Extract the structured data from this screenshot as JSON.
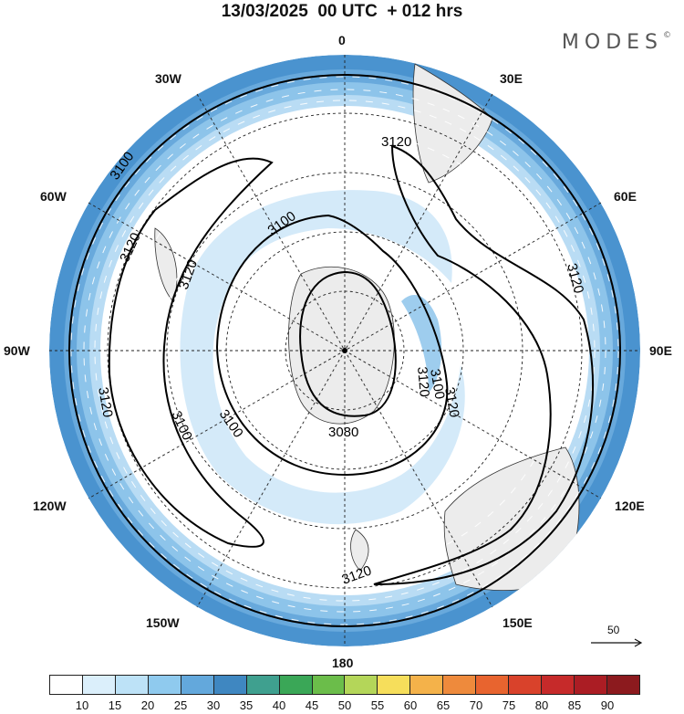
{
  "title": "13/03/2025  00 UTC  + 012 hrs",
  "brand": "MODES",
  "brand_mark": "©",
  "lon_labels": {
    "north": "0",
    "south": "180",
    "west": "90W",
    "east": "90E",
    "w30": "30W",
    "e30": "30E",
    "w60": "60W",
    "e60": "60E",
    "w120": "120W",
    "e120": "120E",
    "w150": "150W",
    "e150": "150E"
  },
  "contour_labels": [
    "3100",
    "3120",
    "3120",
    "3120",
    "3100",
    "3120",
    "3120",
    "3100",
    "3100",
    "3080",
    "3120",
    "3120",
    "3100",
    "3120"
  ],
  "reference_vector": "50",
  "colorbar": {
    "colors": [
      "#ffffff",
      "#dbeffb",
      "#bde2f7",
      "#8fcaee",
      "#63a8dc",
      "#3f87c1",
      "#3fa08f",
      "#3aa757",
      "#6bbd4a",
      "#b4d659",
      "#f6de5b",
      "#f4b24a",
      "#ee8a3c",
      "#e8642f",
      "#d9422b",
      "#c62a2a",
      "#ab1d24",
      "#8c1a1e"
    ],
    "ticks": [
      "10",
      "15",
      "20",
      "25",
      "30",
      "35",
      "40",
      "45",
      "50",
      "55",
      "60",
      "65",
      "70",
      "75",
      "80",
      "85",
      "90"
    ]
  }
}
